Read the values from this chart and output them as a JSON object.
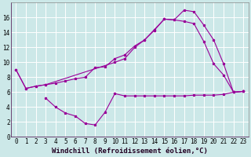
{
  "background_color": "#cce8e8",
  "grid_color": "#ffffff",
  "line_color": "#990099",
  "xlabel": "Windchill (Refroidissement éolien,°C)",
  "xlabel_fontsize": 6.5,
  "tick_fontsize": 5.5,
  "ylim": [
    0,
    18
  ],
  "xlim": [
    -0.5,
    23.5
  ],
  "yticks": [
    0,
    2,
    4,
    6,
    8,
    10,
    12,
    14,
    16
  ],
  "xticks": [
    0,
    1,
    2,
    3,
    4,
    5,
    6,
    7,
    8,
    9,
    10,
    11,
    12,
    13,
    14,
    15,
    16,
    17,
    18,
    19,
    20,
    21,
    22,
    23
  ],
  "series1_x": [
    0,
    1,
    2,
    3,
    4,
    5,
    6,
    7,
    8,
    9,
    10,
    11,
    12,
    13,
    14,
    15,
    16,
    17,
    18,
    19,
    20,
    21,
    22,
    23
  ],
  "series1_y": [
    9.0,
    6.5,
    6.8,
    7.0,
    7.2,
    7.5,
    7.8,
    8.0,
    9.3,
    9.4,
    10.5,
    11.0,
    12.2,
    13.0,
    14.4,
    15.8,
    15.7,
    15.5,
    15.2,
    12.8,
    9.8,
    8.3,
    6.0,
    6.1
  ],
  "series2_x": [
    0,
    1,
    2,
    3,
    10,
    11,
    12,
    13,
    14,
    15,
    16,
    17,
    18,
    19,
    20,
    21,
    22,
    23
  ],
  "series2_y": [
    9.0,
    6.5,
    6.8,
    7.0,
    10.0,
    10.5,
    12.0,
    13.0,
    14.3,
    15.8,
    15.7,
    17.0,
    16.8,
    15.0,
    13.0,
    9.8,
    6.0,
    6.1
  ],
  "series3_x": [
    3,
    4,
    5,
    6,
    7,
    8,
    9,
    10,
    11,
    12,
    13,
    14,
    15,
    16,
    17,
    18,
    19,
    20,
    21,
    22,
    23
  ],
  "series3_y": [
    5.2,
    4.0,
    3.2,
    2.8,
    1.8,
    1.6,
    3.3,
    5.8,
    5.5,
    5.5,
    5.5,
    5.5,
    5.5,
    5.5,
    5.5,
    5.6,
    5.6,
    5.6,
    5.7,
    6.0,
    6.1
  ]
}
